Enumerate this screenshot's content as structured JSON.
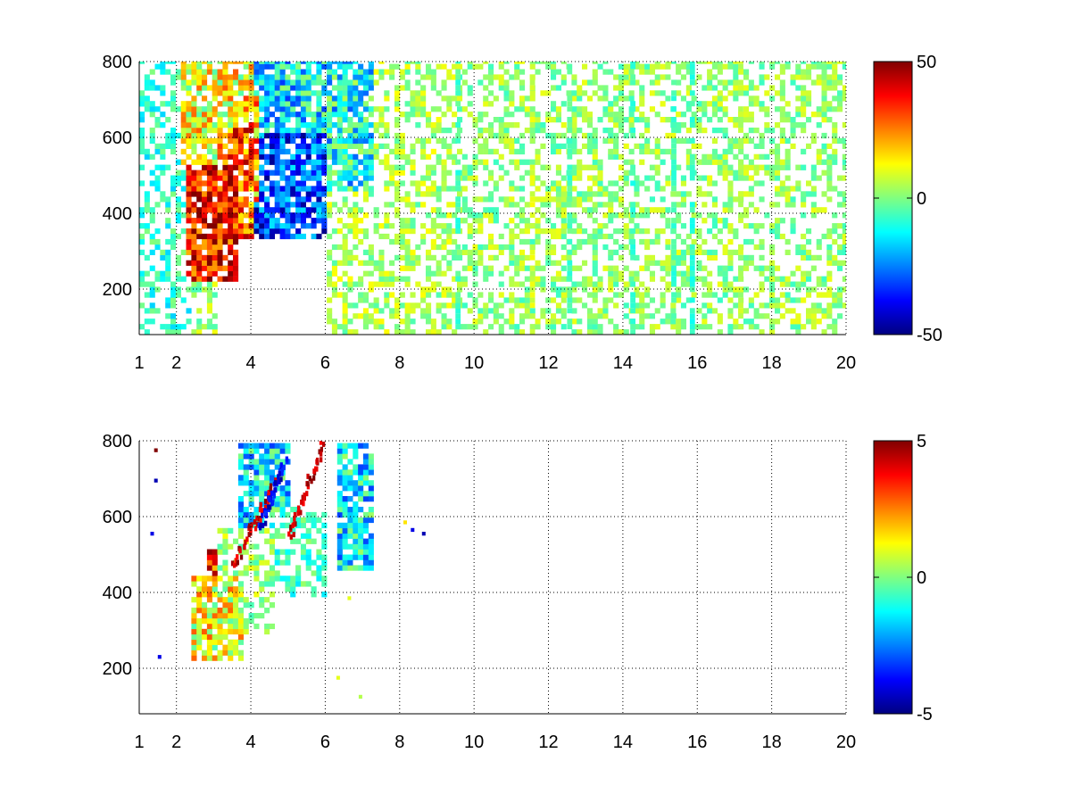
{
  "chart_data": [
    {
      "type": "heatmap",
      "title": "",
      "xlabel": "",
      "ylabel": "",
      "xlim": [
        1,
        20
      ],
      "ylim": [
        80,
        800
      ],
      "x_ticks": [
        1,
        2,
        4,
        6,
        8,
        10,
        12,
        14,
        16,
        18,
        20
      ],
      "x_tick_labels": [
        "1",
        "2",
        "4",
        "6",
        "8",
        "10",
        "12",
        "14",
        "16",
        "18",
        "20"
      ],
      "y_ticks": [
        200,
        400,
        600,
        800
      ],
      "y_tick_labels": [
        "200",
        "400",
        "600",
        "800"
      ],
      "grid": true,
      "colormap": "jet",
      "colorbar": {
        "min": -50,
        "max": 50,
        "ticks": [
          50,
          0,
          -50
        ],
        "tick_labels": [
          "50",
          "0",
          "-50"
        ]
      },
      "regions": [
        {
          "x": [
            2.2,
            3.6
          ],
          "y": [
            220,
            520
          ],
          "value": 38
        },
        {
          "x": [
            3.0,
            4.0
          ],
          "y": [
            330,
            620
          ],
          "value": 30
        },
        {
          "x": [
            3.4,
            4.2
          ],
          "y": [
            420,
            700
          ],
          "value": 22
        },
        {
          "x": [
            3.9,
            5.9
          ],
          "y": [
            330,
            600
          ],
          "value": -32
        },
        {
          "x": [
            4.0,
            6.0
          ],
          "y": [
            580,
            800
          ],
          "value": -15
        },
        {
          "x": [
            2.0,
            4.0
          ],
          "y": [
            520,
            800
          ],
          "value": 12
        },
        {
          "x": [
            6.0,
            7.2
          ],
          "y": [
            450,
            800
          ],
          "value": -12
        },
        {
          "x": [
            1.0,
            2.3
          ],
          "y": [
            80,
            800
          ],
          "value": -8
        },
        {
          "x": [
            2.0,
            3.0
          ],
          "y": [
            80,
            220
          ],
          "value": 3
        },
        {
          "x": [
            6.0,
            9.5
          ],
          "y": [
            80,
            800
          ],
          "value": 4
        },
        {
          "x": [
            9.5,
            20.0
          ],
          "y": [
            80,
            800
          ],
          "value": 2
        }
      ],
      "bands": [
        {
          "x": 9.5,
          "value": -6
        },
        {
          "x": 11.5,
          "value": 8
        },
        {
          "x": 12.5,
          "value": -5
        },
        {
          "x": 14.2,
          "value": -7
        },
        {
          "x": 15.3,
          "value": -6
        },
        {
          "x": 15.8,
          "value": -8
        },
        {
          "x": 17.1,
          "value": 5
        }
      ]
    },
    {
      "type": "heatmap",
      "title": "",
      "xlabel": "",
      "ylabel": "",
      "xlim": [
        1,
        20
      ],
      "ylim": [
        80,
        800
      ],
      "x_ticks": [
        1,
        2,
        4,
        6,
        8,
        10,
        12,
        14,
        16,
        18,
        20
      ],
      "x_tick_labels": [
        "1",
        "2",
        "4",
        "6",
        "8",
        "10",
        "12",
        "14",
        "16",
        "18",
        "20"
      ],
      "y_ticks": [
        200,
        400,
        600,
        800
      ],
      "y_tick_labels": [
        "200",
        "400",
        "600",
        "800"
      ],
      "grid": true,
      "colormap": "jet",
      "colorbar": {
        "min": -5,
        "max": 5,
        "ticks": [
          5,
          0,
          -5
        ],
        "tick_labels": [
          "5",
          "0",
          "-5"
        ]
      },
      "regions": [
        {
          "x": [
            2.3,
            3.8
          ],
          "y": [
            210,
            430
          ],
          "value": 1.2
        },
        {
          "x": [
            3.0,
            4.6
          ],
          "y": [
            280,
            560
          ],
          "value": 0.3
        },
        {
          "x": [
            4.0,
            6.0
          ],
          "y": [
            380,
            620
          ],
          "value": -0.6
        },
        {
          "x": [
            3.6,
            5.0
          ],
          "y": [
            560,
            780
          ],
          "value": -1.5
        },
        {
          "x": [
            6.2,
            7.2
          ],
          "y": [
            450,
            780
          ],
          "value": -1.4
        },
        {
          "x": [
            2.7,
            3.1
          ],
          "y": [
            400,
            500
          ],
          "value": 3.5
        }
      ],
      "ridges": [
        {
          "x0": 3.5,
          "y0": 460,
          "x1": 4.6,
          "y1": 680,
          "value": 4.2
        },
        {
          "x0": 4.2,
          "y0": 560,
          "x1": 4.9,
          "y1": 740,
          "value": -4.0
        },
        {
          "x0": 5.0,
          "y0": 540,
          "x1": 5.9,
          "y1": 780,
          "value": 4.4
        }
      ],
      "specks": [
        {
          "x": 8.1,
          "y": 580,
          "value": 1.5
        },
        {
          "x": 8.3,
          "y": 560,
          "value": -4
        },
        {
          "x": 8.6,
          "y": 550,
          "value": -4.5
        },
        {
          "x": 1.4,
          "y": 770,
          "value": 5
        },
        {
          "x": 1.4,
          "y": 690,
          "value": -4.5
        },
        {
          "x": 1.3,
          "y": 550,
          "value": -4
        },
        {
          "x": 1.5,
          "y": 225,
          "value": -4
        },
        {
          "x": 6.6,
          "y": 380,
          "value": 1
        },
        {
          "x": 6.9,
          "y": 120,
          "value": 0.5
        },
        {
          "x": 6.3,
          "y": 170,
          "value": 1
        }
      ]
    }
  ]
}
